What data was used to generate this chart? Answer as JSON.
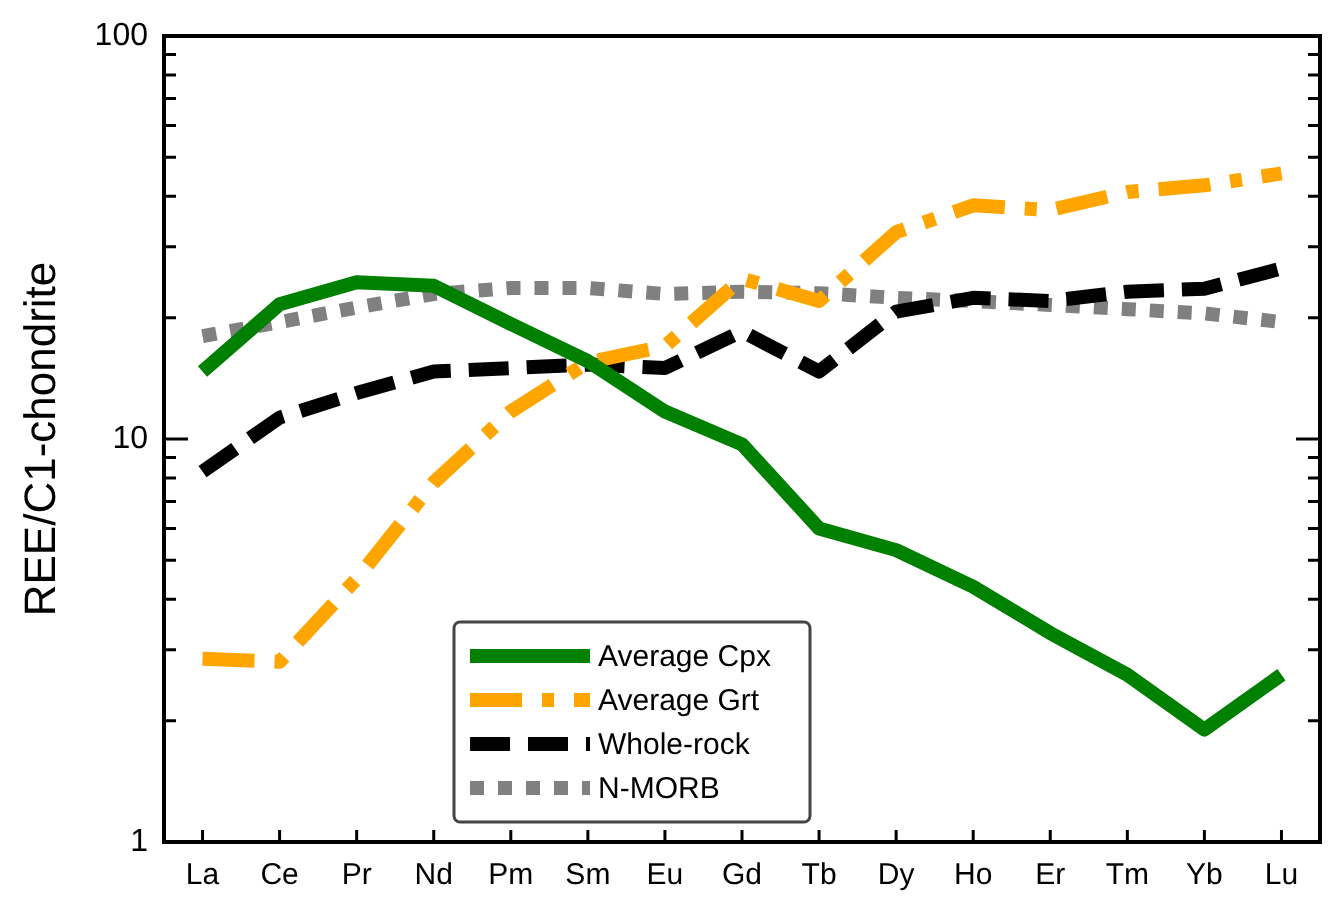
{
  "chart_data": {
    "type": "line",
    "ylabel": "REE/C1-chondrite",
    "categories": [
      "La",
      "Ce",
      "Pr",
      "Nd",
      "Pm",
      "Sm",
      "Eu",
      "Gd",
      "Tb",
      "Dy",
      "Ho",
      "Er",
      "Tm",
      "Yb",
      "Lu"
    ],
    "log": "y",
    "ylim": [
      1,
      100
    ],
    "yticks": [
      1,
      {
        "value": 2,
        "label": null
      },
      {
        "value": 3,
        "label": null
      },
      {
        "value": 4,
        "label": null
      },
      {
        "value": 5,
        "label": null
      },
      {
        "value": 6,
        "label": null
      },
      {
        "value": 7,
        "label": null
      },
      {
        "value": 8,
        "label": null
      },
      {
        "value": 9,
        "label": null
      },
      10,
      {
        "value": 20,
        "label": null
      },
      {
        "value": 30,
        "label": null
      },
      {
        "value": 40,
        "label": null
      },
      {
        "value": 50,
        "label": null
      },
      {
        "value": 60,
        "label": null
      },
      {
        "value": 70,
        "label": null
      },
      {
        "value": 80,
        "label": null
      },
      {
        "value": 90,
        "label": null
      },
      100
    ],
    "grid": false,
    "legend": "bottom",
    "marker": "none",
    "series": [
      {
        "name": "Average Cpx",
        "color": "#008000",
        "line_style": "solid",
        "values": [
          14.7,
          21.6,
          24.5,
          24,
          19.3,
          15.6,
          11.7,
          9.7,
          6,
          5.3,
          4.3,
          3.3,
          2.6,
          1.9,
          2.6
        ]
      },
      {
        "name": "Average Grt",
        "color": "#ffa500",
        "line_style": "dashdot",
        "values": [
          2.85,
          2.8,
          4.5,
          7.8,
          11.7,
          15.5,
          17,
          25,
          22,
          32.6,
          38,
          37,
          41,
          42.6,
          45.6
        ]
      },
      {
        "name": "Whole-rock",
        "color": "#000000",
        "line_style": "dashed",
        "values": [
          8.3,
          11.3,
          13,
          14.7,
          15,
          15.3,
          15,
          18.5,
          14.7,
          20.7,
          22.4,
          22,
          23.2,
          23.6,
          26.5
        ]
      },
      {
        "name": "N-MORB",
        "color": "#808080",
        "line_style": "dotted",
        "values": [
          18,
          19.5,
          21.2,
          22.9,
          23.7,
          23.7,
          22.9,
          23.2,
          23,
          22.4,
          22,
          21.5,
          21,
          20.5,
          19.5
        ]
      }
    ]
  }
}
